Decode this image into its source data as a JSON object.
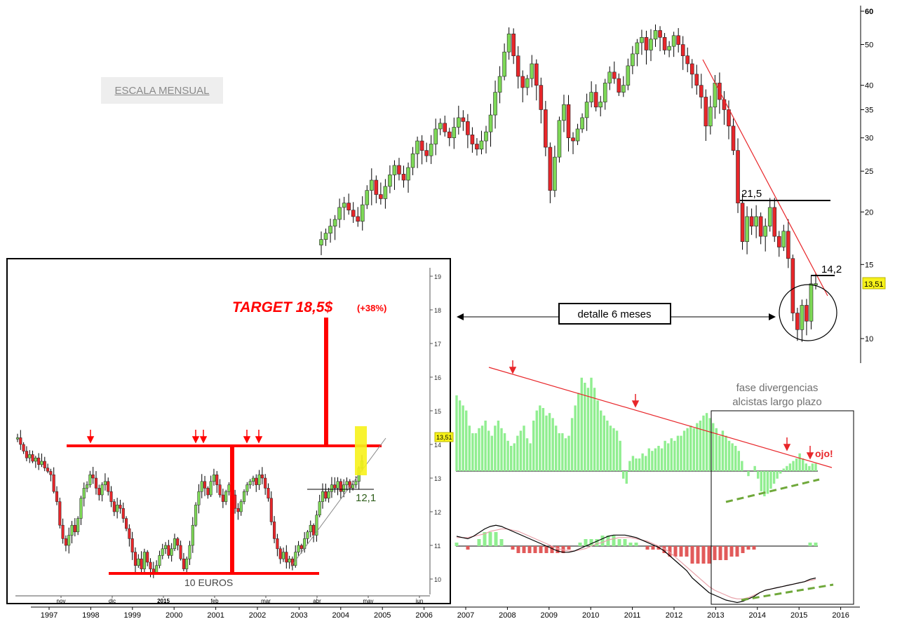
{
  "badge": "ESCALA MENSUAL",
  "annotations": {
    "target": "TARGET 18,5$",
    "target_pct": "(+38%)",
    "detail": "detalle 6 meses",
    "level_215": "21,5",
    "level_142": "14,2",
    "level_121": "12,1",
    "ten_euros": "10 EUROS",
    "phase_line1": "fase divergencias",
    "phase_line2": "alcistas largo plazo",
    "ojo": "ojo!",
    "last_price": "13,51",
    "inset_last_price": "13,51"
  },
  "colors": {
    "bull": "#7ed957",
    "bear": "#e8262a",
    "hist_pos": "#90ee90",
    "hist_neg": "#e25a5a",
    "signal": "#e8a0a8",
    "accent": "#ff0000",
    "highlight": "#f7f21a",
    "dashed": "#6fa83a"
  },
  "chart_data": [
    {
      "type": "candlestick",
      "title": "",
      "scale": "log",
      "y_ticks": [
        "10",
        "15",
        "20",
        "25",
        "30",
        "35",
        "40",
        "50",
        "60"
      ],
      "x_ticks": [
        "1997",
        "1998",
        "1999",
        "2000",
        "2001",
        "2002",
        "2003",
        "2004",
        "2005",
        "2006",
        "2007",
        "2008",
        "2009",
        "2010",
        "2011",
        "2012",
        "2013",
        "2014",
        "2015",
        "2016"
      ],
      "monthly_close": [
        17.2,
        17.8,
        18.5,
        19.2,
        20.5,
        21.0,
        20.2,
        19.5,
        19.0,
        20.8,
        22.5,
        23.8,
        22.0,
        21.5,
        23.0,
        24.5,
        25.8,
        24.6,
        23.8,
        25.5,
        27.5,
        29.5,
        28.0,
        27.2,
        29.0,
        31.5,
        32.5,
        31.0,
        30.0,
        31.8,
        33.5,
        32.8,
        30.5,
        29.0,
        28.2,
        29.5,
        31.0,
        34.0,
        38.5,
        42.0,
        48.0,
        53.0,
        47.0,
        42.0,
        39.5,
        41.5,
        45.0,
        40.0,
        35.0,
        28.5,
        22.5,
        27.0,
        33.0,
        36.0,
        30.0,
        29.5,
        31.5,
        33.5,
        36.5,
        38.5,
        35.5,
        36.5,
        40.5,
        43.0,
        41.5,
        38.5,
        40.0,
        44.5,
        47.5,
        50.5,
        52.0,
        48.5,
        51.5,
        54.0,
        52.0,
        48.5,
        49.5,
        52.5,
        50.0,
        47.0,
        45.0,
        42.5,
        40.0,
        37.5,
        32.0,
        35.5,
        40.5,
        37.0,
        35.0,
        32.0,
        28.0,
        21.0,
        17.0,
        19.5,
        18.5,
        19.5,
        17.5,
        18.5,
        20.5,
        17.5,
        16.5,
        18.0,
        15.5,
        11.5,
        10.5,
        12.0,
        11.0,
        13.5,
        13.51
      ],
      "levels": [
        21.5,
        14.2
      ],
      "last_price": 13.51
    },
    {
      "type": "candlestick",
      "title": "",
      "y_ticks": [
        "10",
        "11",
        "12",
        "13",
        "14",
        "15",
        "16",
        "17",
        "18",
        "19"
      ],
      "x_ticks": [
        "nov",
        "dic",
        "2015",
        "feb",
        "mar",
        "abr",
        "may",
        "jun"
      ],
      "ylim": [
        9.9,
        19.2
      ],
      "daily_close": [
        14.2,
        14.0,
        13.8,
        13.6,
        13.7,
        13.5,
        13.6,
        13.4,
        13.5,
        13.3,
        13.2,
        13.1,
        12.6,
        12.3,
        11.6,
        11.2,
        11.0,
        11.3,
        11.6,
        11.4,
        11.8,
        12.4,
        12.7,
        12.8,
        13.1,
        13.0,
        12.7,
        12.5,
        12.8,
        12.9,
        12.6,
        12.3,
        12.0,
        12.2,
        12.1,
        11.8,
        11.5,
        11.2,
        10.8,
        10.4,
        10.6,
        10.3,
        10.8,
        10.5,
        10.3,
        10.2,
        10.4,
        10.7,
        10.9,
        11.0,
        10.7,
        10.9,
        11.2,
        11.0,
        10.6,
        10.3,
        10.6,
        11.0,
        11.6,
        12.2,
        12.6,
        12.9,
        12.7,
        12.5,
        12.9,
        13.1,
        12.8,
        12.5,
        12.3,
        12.6,
        12.8,
        12.5,
        12.1,
        12.0,
        12.3,
        12.6,
        12.8,
        12.9,
        13.0,
        12.8,
        13.1,
        13.0,
        12.7,
        12.4,
        11.7,
        11.2,
        10.9,
        10.6,
        10.8,
        10.5,
        10.6,
        10.4,
        10.8,
        11.0,
        10.9,
        11.2,
        11.4,
        11.6,
        11.3,
        11.9,
        12.3,
        12.6,
        12.4,
        12.6,
        12.8,
        12.7,
        12.9,
        12.6,
        12.8,
        12.9,
        12.7,
        12.8,
        12.9,
        13.3,
        13.51
      ],
      "resistance": 13.27,
      "support": 10.15,
      "target": 18.5,
      "target_pct": 38
    },
    {
      "type": "bar",
      "title": "",
      "values": [
        30,
        28,
        26,
        24,
        18,
        15,
        15,
        17,
        18,
        20,
        16,
        14,
        18,
        20,
        17,
        15,
        12,
        10,
        11,
        14,
        16,
        18,
        13,
        11,
        20,
        24,
        26,
        25,
        22,
        23,
        21,
        18,
        15,
        15,
        13,
        14,
        21,
        26,
        31,
        37,
        35,
        33,
        37,
        33,
        28,
        24,
        22,
        20,
        18,
        17,
        16,
        12,
        -3,
        -5,
        4,
        6,
        5,
        5,
        7,
        6,
        9,
        8,
        9,
        10,
        9,
        12,
        11,
        13,
        12,
        14,
        14,
        16,
        17,
        18,
        17,
        19,
        20,
        22,
        23,
        21,
        19,
        17,
        14,
        16,
        14,
        12,
        11,
        10,
        8,
        4,
        0,
        -2,
        0,
        2,
        -3,
        -8,
        -10,
        -9,
        -7,
        -5,
        -3,
        -1,
        1,
        2,
        3,
        4,
        5,
        7,
        5,
        3,
        2,
        3,
        3
      ]
    },
    {
      "type": "line",
      "title": "",
      "series": [
        {
          "name": "",
          "values": [
            8,
            7,
            6,
            8,
            11,
            14,
            16,
            17,
            16,
            14,
            12,
            10,
            8,
            6,
            4,
            2,
            0,
            -2,
            -4,
            -5,
            -5,
            -4,
            -2,
            0,
            2,
            4,
            6,
            8,
            9,
            9,
            9,
            8,
            7,
            5,
            3,
            1,
            -1,
            -4,
            -8,
            -12,
            -16,
            -20,
            -26,
            -30,
            -34,
            -38,
            -40,
            -42,
            -44,
            -45,
            -46,
            -45,
            -43,
            -41,
            -38,
            -36,
            -35,
            -34,
            -33,
            -32,
            -31,
            -30,
            -29,
            -27,
            -26
          ]
        },
        {
          "name": "",
          "values": [
            7,
            7,
            7,
            8,
            9,
            10,
            12,
            13,
            14,
            14,
            13,
            12,
            10,
            8,
            6,
            4,
            2,
            0,
            -2,
            -3,
            -4,
            -4,
            -3,
            -2,
            0,
            2,
            3,
            5,
            6,
            7,
            7,
            7,
            6,
            5,
            4,
            2,
            0,
            -2,
            -5,
            -9,
            -13,
            -17,
            -21,
            -25,
            -29,
            -33,
            -36,
            -38,
            -40,
            -42,
            -43,
            -43,
            -42,
            -40,
            -38,
            -36,
            -35,
            -34,
            -33,
            -32,
            -31,
            -30,
            -29,
            -28,
            -27
          ]
        }
      ],
      "histogram": [
        1,
        0,
        -1,
        0,
        2,
        4,
        4,
        4,
        2,
        0,
        -1,
        -2,
        -2,
        -2,
        -2,
        -2,
        -2,
        -2,
        -2,
        -2,
        -1,
        0,
        1,
        2,
        2,
        2,
        3,
        3,
        3,
        2,
        2,
        1,
        1,
        0,
        -1,
        -1,
        -1,
        -2,
        -3,
        -3,
        -3,
        -3,
        -5,
        -5,
        -5,
        -5,
        -4,
        -4,
        -4,
        -3,
        -3,
        -2,
        -1,
        -1,
        0,
        0,
        0,
        0,
        0,
        0,
        0,
        0,
        0,
        1,
        1
      ]
    }
  ]
}
